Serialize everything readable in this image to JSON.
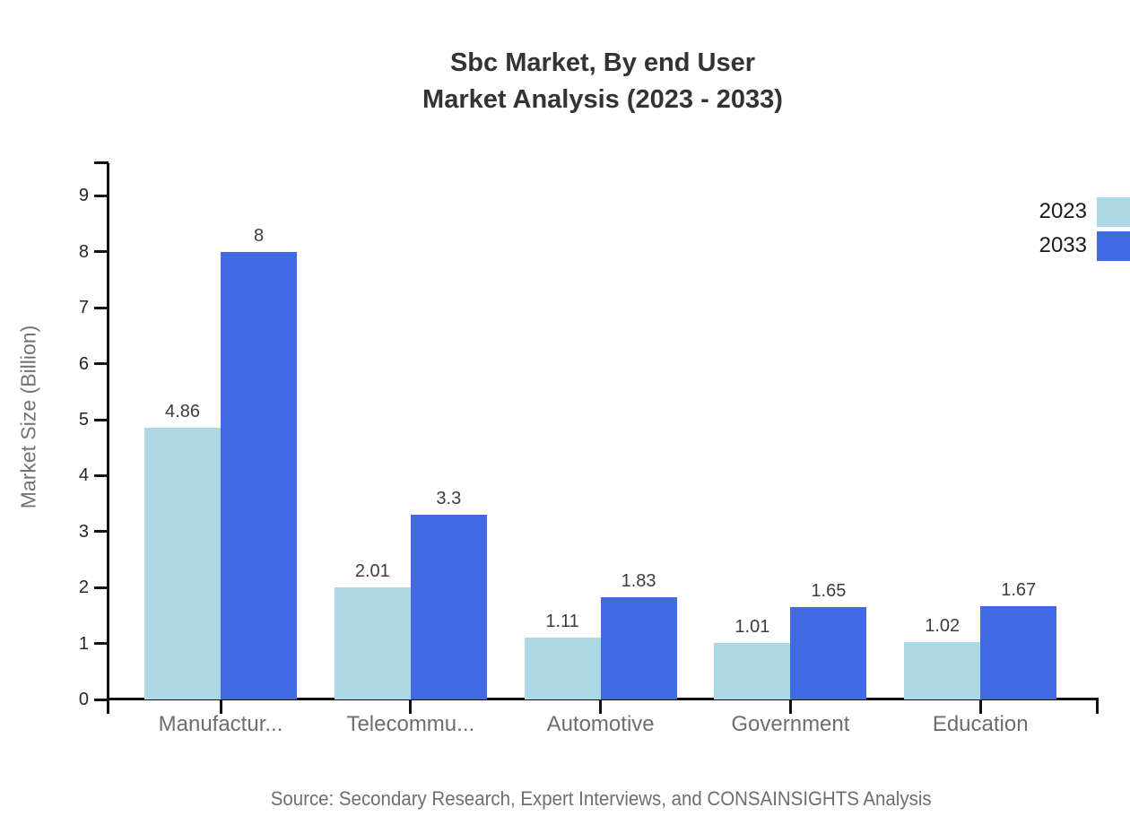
{
  "title": {
    "line1": "Sbc Market, By end User",
    "line2": "Market Analysis (2023 - 2033)"
  },
  "legend": [
    {
      "label": "2023",
      "color": "#ADD8E6"
    },
    {
      "label": "2033",
      "color": "#4169E1"
    }
  ],
  "chart_data": {
    "type": "bar",
    "title": "Sbc Market, By end User Market Analysis (2023 - 2033)",
    "categories": [
      "Manufactur...",
      "Telecommu...",
      "Automotive",
      "Government",
      "Education"
    ],
    "series": [
      {
        "name": "2023",
        "color": "#ADD8E6",
        "values": [
          4.86,
          2.01,
          1.11,
          1.01,
          1.02
        ]
      },
      {
        "name": "2033",
        "color": "#4169E1",
        "values": [
          8,
          3.3,
          1.83,
          1.65,
          1.67
        ]
      }
    ],
    "xlabel": "",
    "ylabel": "Market Size (Billion)",
    "yticks": [
      0,
      1,
      2,
      3,
      4,
      5,
      6,
      7,
      8,
      9
    ],
    "ylim": [
      0,
      9.58
    ],
    "grid": false,
    "legend_position": "top-right",
    "axis_color": "#111111",
    "value_label_color": "#3d3d3d"
  },
  "source": "Source: Secondary Research, Expert Interviews, and CONSAINSIGHTS Analysis"
}
